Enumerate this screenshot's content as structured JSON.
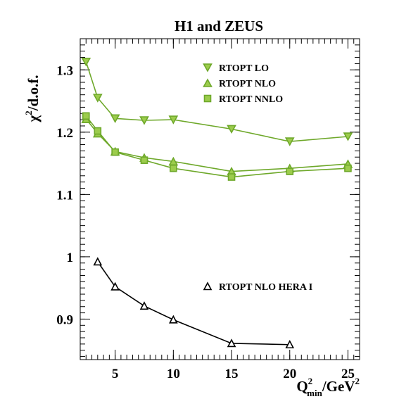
{
  "chart_data": {
    "type": "line",
    "title": "H1 and ZEUS",
    "xlabel": {
      "main": "Q",
      "sup": "2",
      "sub": "min",
      "unit_main": "/GeV",
      "unit_sup": "2"
    },
    "ylabel": {
      "chi": "χ",
      "sup": "2",
      "rest": "/d.o.f."
    },
    "xlim": [
      2,
      26
    ],
    "ylim": [
      0.835,
      1.35
    ],
    "x_ticks": [
      5,
      10,
      15,
      20,
      25
    ],
    "x_tick_labels": [
      "5",
      "10",
      "15",
      "20",
      "25"
    ],
    "y_ticks": [
      0.9,
      1.0,
      1.1,
      1.2,
      1.3
    ],
    "y_tick_labels": [
      "0.9",
      "1",
      "1.1",
      "1.2",
      "1.3"
    ],
    "grid": false,
    "legend_position": "top-right",
    "series": [
      {
        "name": "RTOPT LO",
        "marker": "triangle-down",
        "color": "#6ea82a",
        "fill": "#9ccc4c",
        "x": [
          2.5,
          3.5,
          5,
          7.5,
          10,
          15,
          20,
          25
        ],
        "y": [
          1.313,
          1.255,
          1.222,
          1.219,
          1.22,
          1.205,
          1.185,
          1.193
        ]
      },
      {
        "name": "RTOPT NLO",
        "marker": "triangle-up",
        "color": "#6ea82a",
        "fill": "#9ccc4c",
        "x": [
          2.5,
          3.5,
          5,
          7.5,
          10,
          15,
          20,
          25
        ],
        "y": [
          1.221,
          1.198,
          1.169,
          1.159,
          1.153,
          1.137,
          1.142,
          1.149
        ]
      },
      {
        "name": "RTOPT NNLO",
        "marker": "square",
        "color": "#6ea82a",
        "fill": "#9ccc4c",
        "x": [
          2.5,
          3.5,
          5,
          7.5,
          10,
          15,
          20,
          25
        ],
        "y": [
          1.226,
          1.202,
          1.168,
          1.155,
          1.142,
          1.128,
          1.137,
          1.142
        ]
      },
      {
        "name": "RTOPT NLO HERA I",
        "marker": "triangle-up-open",
        "color": "#000000",
        "fill": "none",
        "x": [
          3.5,
          5,
          7.5,
          10,
          15,
          20
        ],
        "y": [
          0.992,
          0.952,
          0.921,
          0.899,
          0.861,
          0.859
        ]
      }
    ]
  }
}
